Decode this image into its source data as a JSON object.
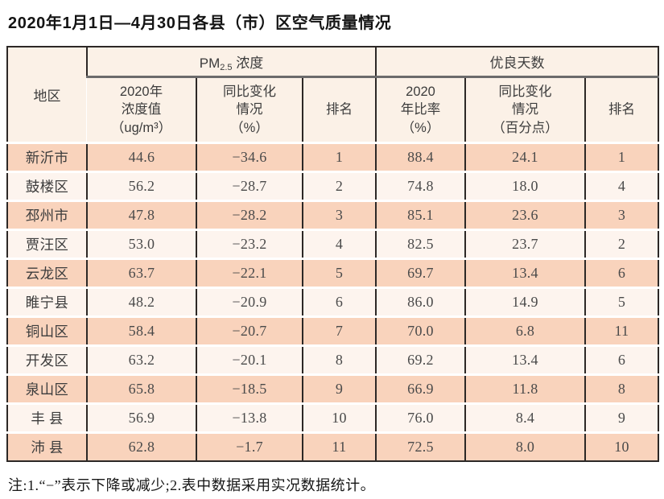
{
  "title": "2020年1月1日—4月30日各县（市）区空气质量情况",
  "colors": {
    "border_dark": "#2c2826",
    "group_underline": "#6b6b6b",
    "header_bg": "#fbf1e7",
    "row_salmon": "#f9d3bc",
    "row_light": "#fdf4ee"
  },
  "table": {
    "region_header": "地区",
    "pm_group": {
      "prefix": "PM",
      "subscript": "2.5",
      "suffix": " 浓度"
    },
    "days_group": "优良天数",
    "sub_headers": {
      "pm_value": "2020年\n浓度值\n（ug/m³）",
      "pm_change": "同比变化\n情况\n（%）",
      "pm_rank": "排名",
      "days_rate": "2020\n年比率\n（%）",
      "days_change": "同比变化\n情况\n（百分点）",
      "days_rank": "排名"
    },
    "row_keys": [
      "region",
      "pm_value",
      "pm_change",
      "pm_rank",
      "days_rate",
      "days_change",
      "days_rank"
    ],
    "rows": [
      {
        "region": "新沂市",
        "pm_value": "44.6",
        "pm_change": "−34.6",
        "pm_rank": "1",
        "days_rate": "88.4",
        "days_change": "24.1",
        "days_rank": "1"
      },
      {
        "region": "鼓楼区",
        "pm_value": "56.2",
        "pm_change": "−28.7",
        "pm_rank": "2",
        "days_rate": "74.8",
        "days_change": "18.0",
        "days_rank": "4"
      },
      {
        "region": "邳州市",
        "pm_value": "47.8",
        "pm_change": "−28.2",
        "pm_rank": "3",
        "days_rate": "85.1",
        "days_change": "23.6",
        "days_rank": "3"
      },
      {
        "region": "贾汪区",
        "pm_value": "53.0",
        "pm_change": "−23.2",
        "pm_rank": "4",
        "days_rate": "82.5",
        "days_change": "23.7",
        "days_rank": "2"
      },
      {
        "region": "云龙区",
        "pm_value": "63.7",
        "pm_change": "−22.1",
        "pm_rank": "5",
        "days_rate": "69.7",
        "days_change": "13.4",
        "days_rank": "6"
      },
      {
        "region": "睢宁县",
        "pm_value": "48.2",
        "pm_change": "−20.9",
        "pm_rank": "6",
        "days_rate": "86.0",
        "days_change": "14.9",
        "days_rank": "5"
      },
      {
        "region": "铜山区",
        "pm_value": "58.4",
        "pm_change": "−20.7",
        "pm_rank": "7",
        "days_rate": "70.0",
        "days_change": "6.8",
        "days_rank": "11"
      },
      {
        "region": "开发区",
        "pm_value": "63.2",
        "pm_change": "−20.1",
        "pm_rank": "8",
        "days_rate": "69.2",
        "days_change": "13.4",
        "days_rank": "6"
      },
      {
        "region": "泉山区",
        "pm_value": "65.8",
        "pm_change": "−18.5",
        "pm_rank": "9",
        "days_rate": "66.9",
        "days_change": "11.8",
        "days_rank": "8"
      },
      {
        "region": "丰 县",
        "pm_value": "56.9",
        "pm_change": "−13.8",
        "pm_rank": "10",
        "days_rate": "76.0",
        "days_change": "8.4",
        "days_rank": "9"
      },
      {
        "region": "沛 县",
        "pm_value": "62.8",
        "pm_change": "−1.7",
        "pm_rank": "11",
        "days_rate": "72.5",
        "days_change": "8.0",
        "days_rank": "10"
      }
    ]
  },
  "note": "注:1.“−”表示下降或减少;2.表中数据采用实况数据统计。"
}
